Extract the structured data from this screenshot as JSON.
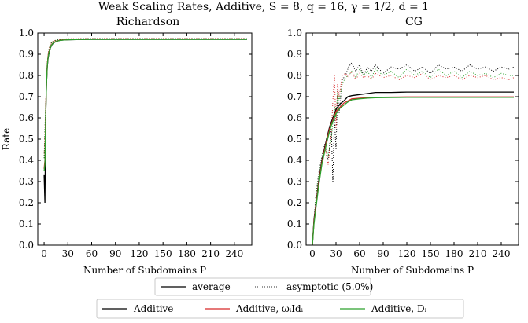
{
  "figure_title": "Weak Scaling Rates, Additive, S = 8, q = 16, γ = 1/2, d = 1",
  "style_legend": [
    {
      "label": "average",
      "dash": "solid"
    },
    {
      "label": "asymptotic (5.0%)",
      "dash": "dotted"
    }
  ],
  "method_legend": [
    {
      "label": "Additive",
      "color": "#000000"
    },
    {
      "label": "Additive, ωᵢIdᵢ",
      "color": "#d62728"
    },
    {
      "label": "Additive, Dᵢ",
      "color": "#2ca02c"
    }
  ],
  "chart_data": [
    {
      "type": "line",
      "title": "Richardson",
      "xlabel": "Number of Subdomains P",
      "ylabel": "Rate",
      "xlim": [
        -8,
        262
      ],
      "ylim": [
        0.0,
        1.0
      ],
      "xticks": [
        "0",
        "30",
        "60",
        "90",
        "120",
        "150",
        "180",
        "210",
        "240"
      ],
      "yticks": [
        "0.0",
        "0.1",
        "0.2",
        "0.3",
        "0.4",
        "0.5",
        "0.6",
        "0.7",
        "0.8",
        "0.9",
        "1.0"
      ],
      "series": [
        {
          "name": "Additive",
          "kind": "average",
          "color": "#000000",
          "x": [
            0,
            1,
            2,
            3,
            4,
            5,
            6,
            8,
            10,
            12,
            15,
            20,
            25,
            30,
            40,
            60,
            100,
            150,
            200,
            256
          ],
          "y": [
            0.33,
            0.2,
            0.6,
            0.76,
            0.84,
            0.88,
            0.9,
            0.93,
            0.945,
            0.953,
            0.96,
            0.965,
            0.967,
            0.968,
            0.969,
            0.97,
            0.97,
            0.97,
            0.97,
            0.97
          ]
        },
        {
          "name": "Additive, ωᵢIdᵢ",
          "kind": "average",
          "color": "#d62728",
          "x": [
            0,
            1,
            2,
            3,
            4,
            5,
            6,
            8,
            10,
            12,
            15,
            20,
            25,
            30,
            40,
            60,
            100,
            150,
            200,
            256
          ],
          "y": [
            0.36,
            0.4,
            0.62,
            0.77,
            0.85,
            0.89,
            0.91,
            0.935,
            0.948,
            0.955,
            0.961,
            0.966,
            0.968,
            0.969,
            0.97,
            0.971,
            0.971,
            0.971,
            0.971,
            0.971
          ]
        },
        {
          "name": "Additive, Dᵢ",
          "kind": "average",
          "color": "#2ca02c",
          "x": [
            0,
            1,
            2,
            3,
            4,
            5,
            6,
            8,
            10,
            12,
            15,
            20,
            25,
            30,
            40,
            60,
            100,
            150,
            200,
            256
          ],
          "y": [
            0.35,
            0.38,
            0.61,
            0.76,
            0.845,
            0.885,
            0.905,
            0.932,
            0.946,
            0.954,
            0.96,
            0.965,
            0.967,
            0.968,
            0.969,
            0.97,
            0.97,
            0.97,
            0.97,
            0.97
          ]
        },
        {
          "name": "Additive",
          "kind": "asymptotic",
          "color": "#000000",
          "x": [
            0,
            2,
            4,
            6,
            8,
            10,
            15,
            20,
            30,
            50,
            100,
            150,
            200,
            256
          ],
          "y": [
            0.4,
            0.66,
            0.86,
            0.92,
            0.945,
            0.957,
            0.966,
            0.97,
            0.972,
            0.973,
            0.973,
            0.973,
            0.973,
            0.973
          ]
        },
        {
          "name": "Additive, ωᵢIdᵢ",
          "kind": "asymptotic",
          "color": "#d62728",
          "x": [
            0,
            2,
            4,
            6,
            8,
            10,
            15,
            20,
            30,
            50,
            100,
            150,
            200,
            256
          ],
          "y": [
            0.42,
            0.67,
            0.865,
            0.925,
            0.948,
            0.958,
            0.967,
            0.971,
            0.973,
            0.974,
            0.974,
            0.974,
            0.974,
            0.974
          ]
        },
        {
          "name": "Additive, Dᵢ",
          "kind": "asymptotic",
          "color": "#2ca02c",
          "x": [
            0,
            2,
            4,
            6,
            8,
            10,
            15,
            20,
            30,
            50,
            100,
            150,
            200,
            256
          ],
          "y": [
            0.41,
            0.665,
            0.862,
            0.922,
            0.946,
            0.957,
            0.966,
            0.97,
            0.972,
            0.973,
            0.973,
            0.973,
            0.973,
            0.973
          ]
        }
      ]
    },
    {
      "type": "line",
      "title": "CG",
      "xlabel": "Number of Subdomains P",
      "ylabel": "",
      "xlim": [
        -8,
        262
      ],
      "ylim": [
        0.0,
        1.0
      ],
      "xticks": [
        "0",
        "30",
        "60",
        "90",
        "120",
        "150",
        "180",
        "210",
        "240"
      ],
      "yticks": [
        "0.0",
        "0.1",
        "0.2",
        "0.3",
        "0.4",
        "0.5",
        "0.6",
        "0.7",
        "0.8",
        "0.9",
        "1.0"
      ],
      "series": [
        {
          "name": "Additive",
          "kind": "average",
          "color": "#000000",
          "x": [
            0,
            2,
            4,
            6,
            8,
            10,
            12,
            15,
            18,
            20,
            22,
            25,
            28,
            30,
            35,
            40,
            45,
            50,
            60,
            70,
            80,
            100,
            120,
            150,
            180,
            210,
            240,
            256
          ],
          "y": [
            0.0,
            0.12,
            0.18,
            0.24,
            0.3,
            0.35,
            0.4,
            0.45,
            0.5,
            0.53,
            0.56,
            0.59,
            0.62,
            0.64,
            0.665,
            0.68,
            0.7,
            0.705,
            0.71,
            0.715,
            0.72,
            0.72,
            0.722,
            0.722,
            0.722,
            0.722,
            0.722,
            0.722
          ]
        },
        {
          "name": "Additive, ωᵢIdᵢ",
          "kind": "average",
          "color": "#d62728",
          "x": [
            0,
            2,
            4,
            6,
            8,
            10,
            12,
            15,
            18,
            20,
            22,
            25,
            28,
            30,
            35,
            40,
            45,
            50,
            60,
            70,
            80,
            100,
            120,
            150,
            180,
            210,
            240,
            256
          ],
          "y": [
            0.0,
            0.11,
            0.17,
            0.23,
            0.29,
            0.34,
            0.39,
            0.44,
            0.49,
            0.52,
            0.55,
            0.58,
            0.61,
            0.63,
            0.65,
            0.67,
            0.68,
            0.69,
            0.693,
            0.695,
            0.697,
            0.698,
            0.699,
            0.699,
            0.699,
            0.699,
            0.699,
            0.699
          ]
        },
        {
          "name": "Additive, Dᵢ",
          "kind": "average",
          "color": "#2ca02c",
          "x": [
            0,
            2,
            4,
            6,
            8,
            10,
            12,
            15,
            18,
            20,
            22,
            25,
            28,
            30,
            35,
            40,
            45,
            50,
            60,
            70,
            80,
            100,
            120,
            150,
            180,
            210,
            240,
            256
          ],
          "y": [
            0.0,
            0.1,
            0.16,
            0.22,
            0.28,
            0.33,
            0.38,
            0.43,
            0.48,
            0.51,
            0.54,
            0.575,
            0.6,
            0.62,
            0.645,
            0.66,
            0.675,
            0.685,
            0.69,
            0.693,
            0.695,
            0.696,
            0.697,
            0.697,
            0.697,
            0.697,
            0.697,
            0.697
          ]
        },
        {
          "name": "Additive",
          "kind": "asymptotic",
          "color": "#000000",
          "x": [
            0,
            4,
            8,
            12,
            16,
            20,
            24,
            26,
            28,
            30,
            32,
            34,
            38,
            42,
            46,
            50,
            55,
            60,
            65,
            70,
            75,
            80,
            90,
            100,
            110,
            120,
            130,
            140,
            150,
            160,
            170,
            180,
            190,
            200,
            210,
            220,
            230,
            240,
            250,
            256
          ],
          "y": [
            0.0,
            0.22,
            0.34,
            0.42,
            0.48,
            0.4,
            0.55,
            0.3,
            0.6,
            0.45,
            0.73,
            0.62,
            0.78,
            0.8,
            0.84,
            0.86,
            0.82,
            0.85,
            0.8,
            0.84,
            0.82,
            0.85,
            0.81,
            0.84,
            0.83,
            0.85,
            0.82,
            0.84,
            0.81,
            0.85,
            0.83,
            0.84,
            0.82,
            0.85,
            0.83,
            0.84,
            0.82,
            0.84,
            0.83,
            0.84
          ]
        },
        {
          "name": "Additive, ωᵢIdᵢ",
          "kind": "asymptotic",
          "color": "#d62728",
          "x": [
            0,
            4,
            8,
            12,
            16,
            20,
            24,
            26,
            28,
            30,
            32,
            34,
            38,
            42,
            46,
            50,
            55,
            60,
            65,
            70,
            75,
            80,
            90,
            100,
            110,
            120,
            130,
            140,
            150,
            160,
            170,
            180,
            190,
            200,
            210,
            220,
            230,
            240,
            250,
            256
          ],
          "y": [
            0.0,
            0.2,
            0.32,
            0.4,
            0.46,
            0.38,
            0.52,
            0.68,
            0.8,
            0.55,
            0.76,
            0.7,
            0.8,
            0.81,
            0.79,
            0.82,
            0.78,
            0.81,
            0.79,
            0.8,
            0.78,
            0.81,
            0.79,
            0.8,
            0.78,
            0.8,
            0.79,
            0.81,
            0.78,
            0.8,
            0.79,
            0.8,
            0.78,
            0.8,
            0.79,
            0.8,
            0.78,
            0.79,
            0.78,
            0.79
          ]
        },
        {
          "name": "Additive, Dᵢ",
          "kind": "asymptotic",
          "color": "#2ca02c",
          "x": [
            0,
            4,
            8,
            12,
            16,
            20,
            24,
            26,
            28,
            30,
            32,
            34,
            38,
            42,
            46,
            50,
            55,
            60,
            65,
            70,
            75,
            80,
            90,
            100,
            110,
            120,
            130,
            140,
            150,
            160,
            170,
            180,
            190,
            200,
            210,
            220,
            230,
            240,
            250,
            256
          ],
          "y": [
            0.0,
            0.21,
            0.33,
            0.41,
            0.47,
            0.42,
            0.5,
            0.58,
            0.66,
            0.6,
            0.72,
            0.68,
            0.76,
            0.79,
            0.8,
            0.82,
            0.79,
            0.83,
            0.8,
            0.82,
            0.79,
            0.83,
            0.8,
            0.82,
            0.79,
            0.83,
            0.8,
            0.82,
            0.79,
            0.83,
            0.8,
            0.82,
            0.79,
            0.82,
            0.8,
            0.81,
            0.79,
            0.81,
            0.8,
            0.8
          ]
        }
      ]
    }
  ]
}
